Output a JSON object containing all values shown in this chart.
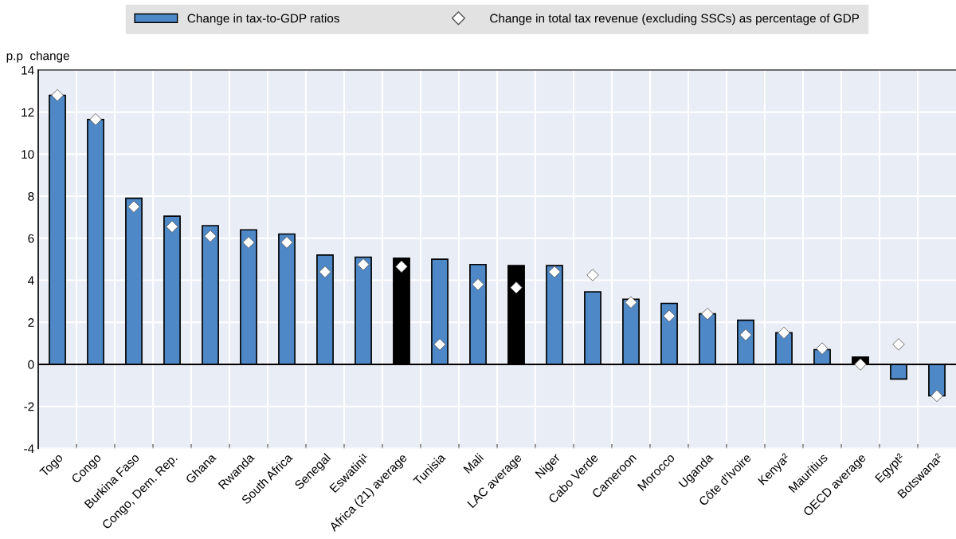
{
  "chart_data": {
    "type": "bar",
    "ylabel": "p.p  change",
    "categories": [
      "Togo",
      "Congo",
      "Burkina Faso",
      "Congo, Dem. Rep.",
      "Ghana",
      "Rwanda",
      "South Africa",
      "Senegal",
      "Eswatini¹",
      "Africa (21) average",
      "Tunisia",
      "Mali",
      "LAC average",
      "Niger",
      "Cabo Verde",
      "Cameroon",
      "Morocco",
      "Uganda",
      "Côte d'Ivoire",
      "Kenya²",
      "Mauritius",
      "OECD average",
      "Egypt²",
      "Botswana²"
    ],
    "series": [
      {
        "name": "Change in tax-to-GDP ratios",
        "color": "#4e88c7",
        "colors": [
          "#4e88c7",
          "#4e88c7",
          "#4e88c7",
          "#4e88c7",
          "#4e88c7",
          "#4e88c7",
          "#4e88c7",
          "#4e88c7",
          "#4e88c7",
          "#000000",
          "#4e88c7",
          "#4e88c7",
          "#000000",
          "#4e88c7",
          "#4e88c7",
          "#4e88c7",
          "#4e88c7",
          "#4e88c7",
          "#4e88c7",
          "#4e88c7",
          "#4e88c7",
          "#000000",
          "#4e88c7",
          "#4e88c7"
        ],
        "values": [
          12.8,
          11.65,
          7.9,
          7.05,
          6.6,
          6.4,
          6.2,
          5.2,
          5.1,
          5.05,
          5.0,
          4.75,
          4.7,
          4.7,
          3.45,
          3.1,
          2.9,
          2.4,
          2.1,
          1.5,
          0.7,
          0.35,
          -0.7,
          -1.5
        ]
      },
      {
        "name": "Change in total tax revenue (excluding SSCs) as percentage of GDP",
        "type": "scatter",
        "marker": "diamond",
        "color": "#ffffff",
        "values": [
          12.8,
          11.65,
          7.5,
          6.55,
          6.1,
          5.8,
          5.8,
          4.4,
          4.75,
          4.65,
          0.95,
          3.8,
          3.65,
          4.4,
          4.25,
          2.95,
          2.3,
          2.4,
          1.4,
          1.5,
          0.75,
          0.0,
          0.95,
          -1.5
        ]
      }
    ],
    "ylim": [
      -4,
      14
    ],
    "yticks": [
      -4,
      -2,
      0,
      2,
      4,
      6,
      8,
      10,
      12,
      14
    ],
    "grid": true,
    "legend": "top"
  }
}
